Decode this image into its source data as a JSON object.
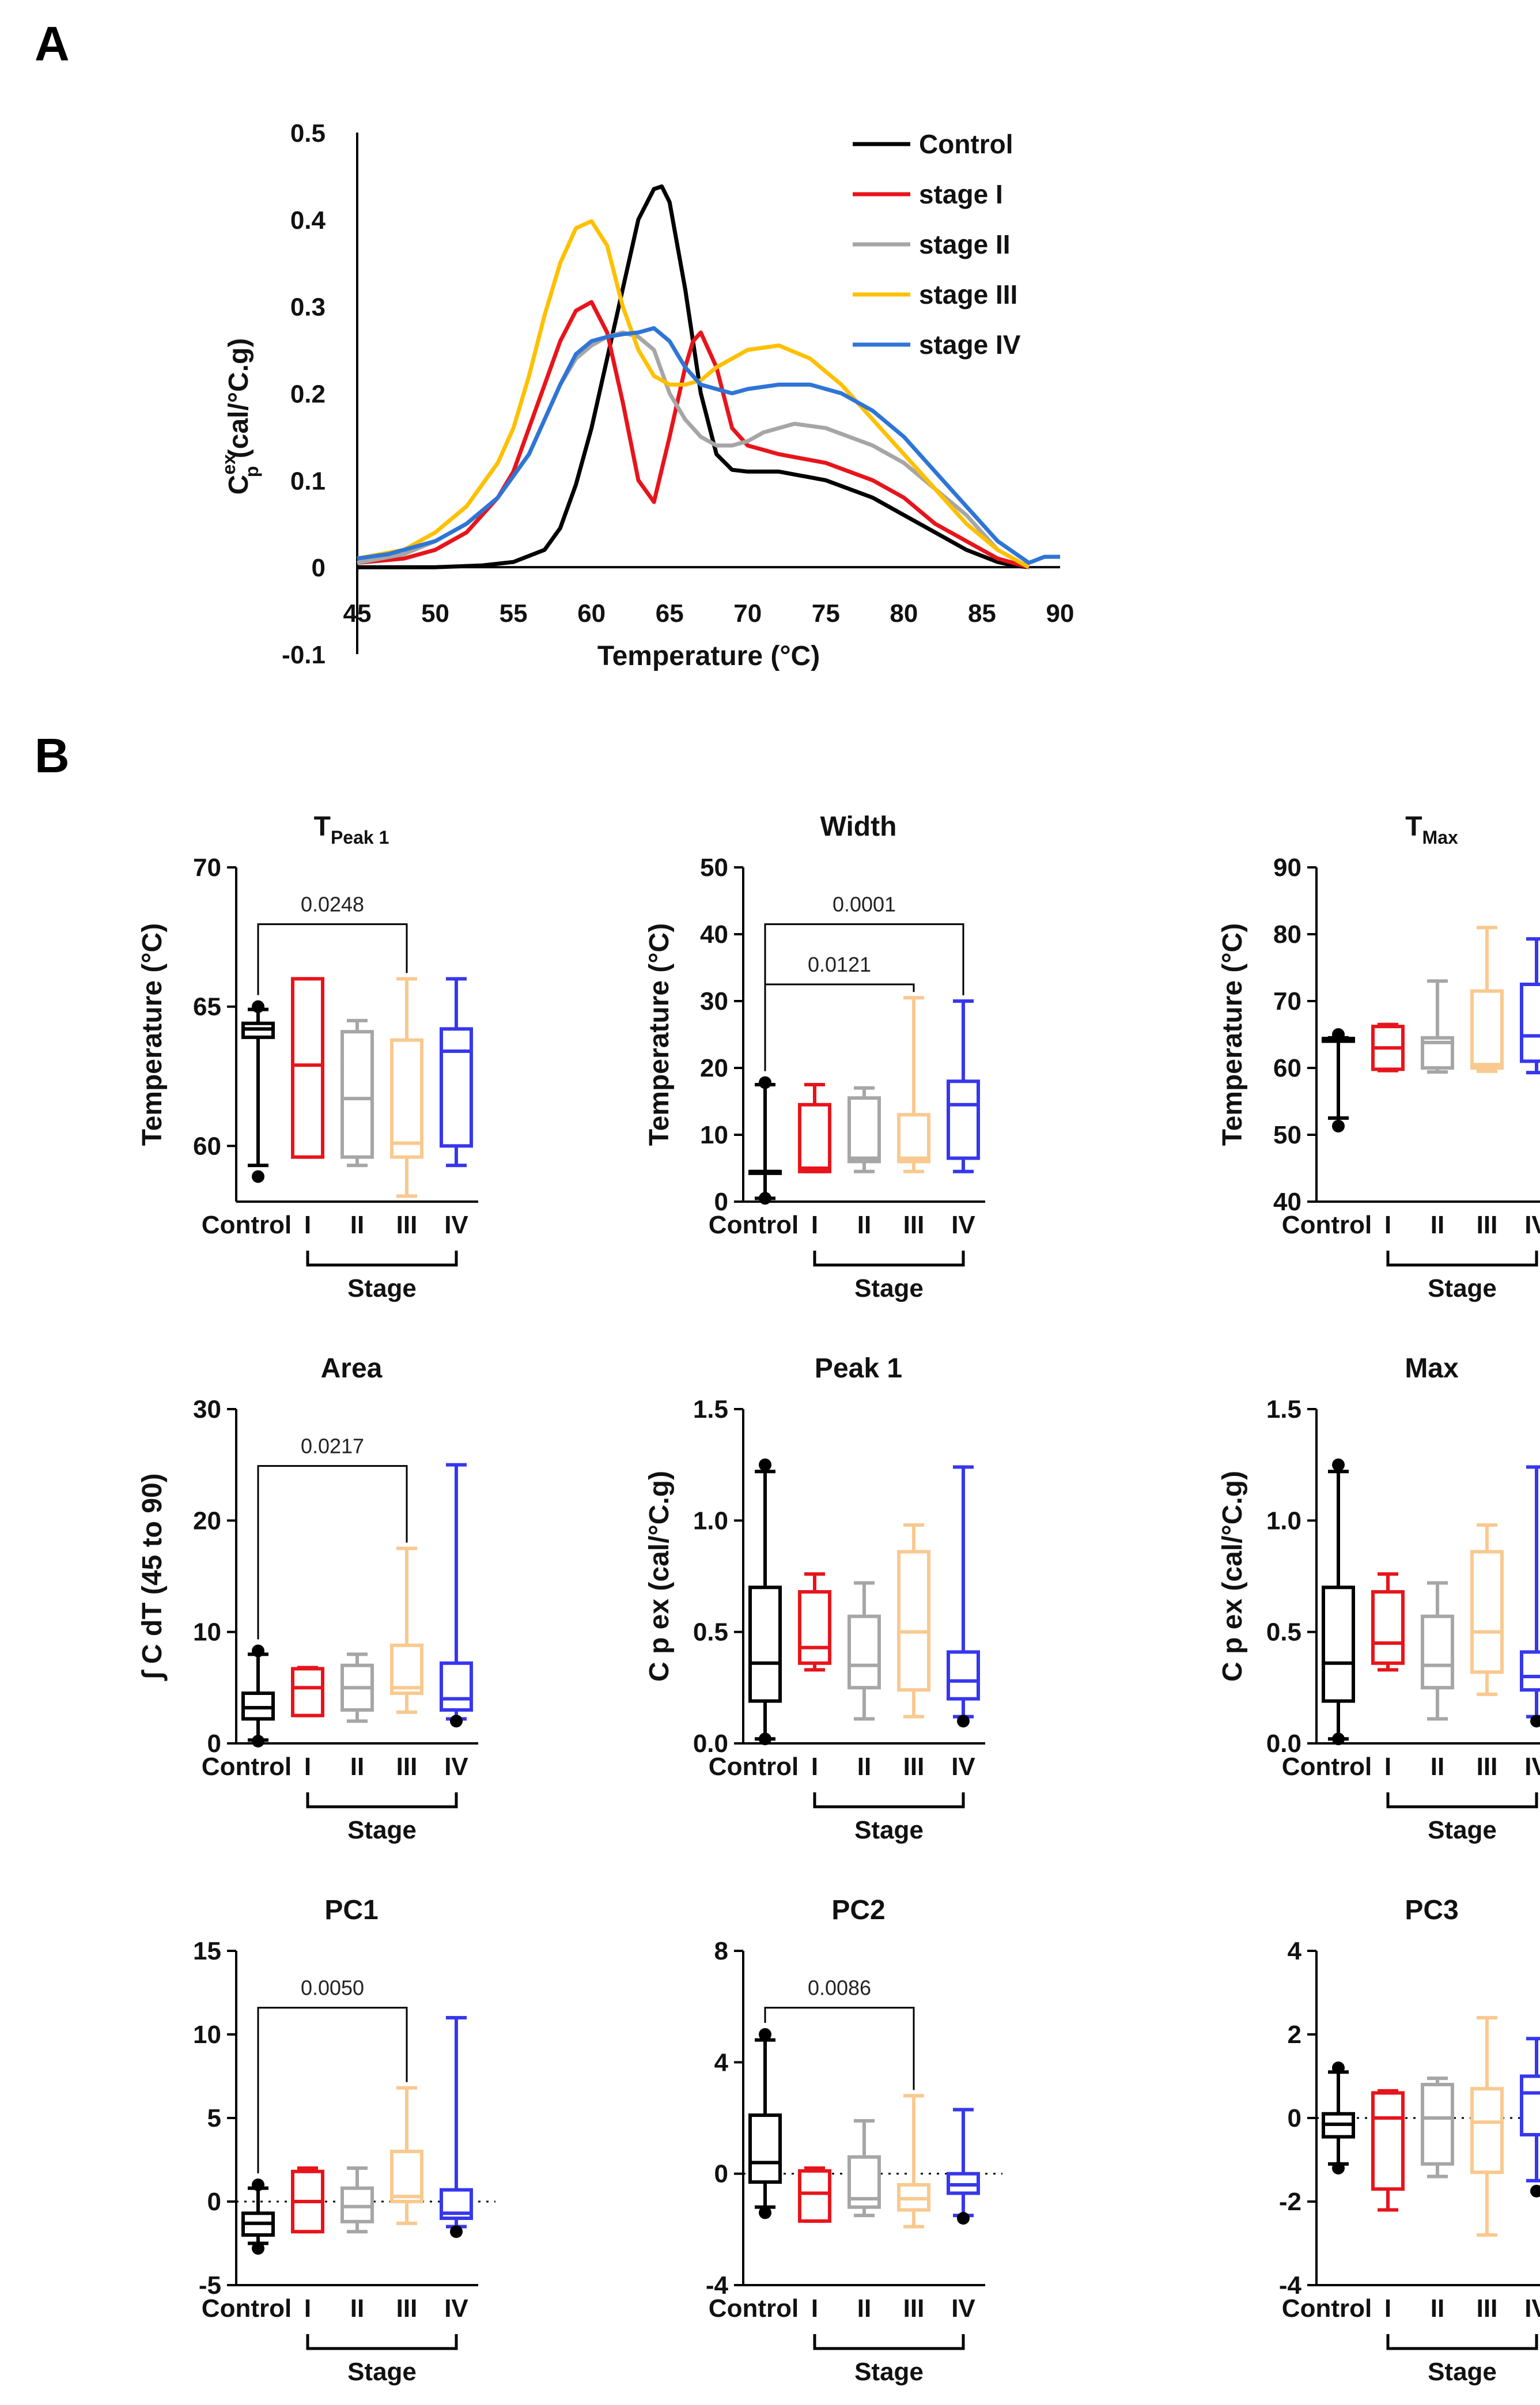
{
  "panels": {
    "a_letter": "A",
    "b_letter": "B"
  },
  "stage_label": "Stage",
  "chart_data": [
    {
      "id": "A",
      "type": "line",
      "title": "",
      "xlabel": "Temperature (°C)",
      "ylabel_main": "C",
      "ylabel_sup": "ex",
      "ylabel_sub": "p",
      "ylabel_rest": " (cal/°C.g)",
      "xlim": [
        45,
        90
      ],
      "ylim": [
        -0.1,
        0.5
      ],
      "xticks": [
        45,
        50,
        55,
        60,
        65,
        70,
        75,
        80,
        85,
        90
      ],
      "yticks": [
        -0.1,
        0,
        0.1,
        0.2,
        0.3,
        0.4,
        0.5
      ],
      "ytick_labels": [
        "-0.1",
        "0",
        "0.1",
        "0.2",
        "0.3",
        "0.4",
        "0.5"
      ],
      "legend": "top-right",
      "series": [
        {
          "name": "Control",
          "color": "#000000",
          "x": [
            45,
            50,
            53,
            55,
            57,
            58,
            59,
            60,
            61,
            62,
            63,
            64,
            64.5,
            65,
            66,
            67,
            68,
            69,
            70,
            72,
            75,
            78,
            80,
            82,
            84,
            86,
            87,
            88
          ],
          "y": [
            0,
            0,
            0.002,
            0.006,
            0.02,
            0.045,
            0.095,
            0.16,
            0.24,
            0.32,
            0.4,
            0.435,
            0.438,
            0.42,
            0.32,
            0.2,
            0.13,
            0.112,
            0.11,
            0.11,
            0.1,
            0.08,
            0.06,
            0.04,
            0.02,
            0.006,
            0.002,
            0
          ]
        },
        {
          "name": "stage I",
          "color": "#e8141b",
          "x": [
            45,
            48,
            50,
            52,
            54,
            55,
            56,
            57,
            58,
            59,
            60,
            61,
            62,
            63,
            64,
            65,
            66,
            66.5,
            67,
            68,
            69,
            70,
            72,
            75,
            78,
            80,
            82,
            84,
            86,
            88
          ],
          "y": [
            0.005,
            0.01,
            0.02,
            0.04,
            0.08,
            0.11,
            0.16,
            0.21,
            0.26,
            0.295,
            0.305,
            0.27,
            0.19,
            0.1,
            0.075,
            0.15,
            0.23,
            0.26,
            0.27,
            0.23,
            0.16,
            0.14,
            0.13,
            0.12,
            0.1,
            0.08,
            0.05,
            0.03,
            0.01,
            0
          ]
        },
        {
          "name": "stage II",
          "color": "#a6a6a6",
          "x": [
            45,
            48,
            50,
            52,
            54,
            56,
            57,
            58,
            59,
            60,
            61,
            62,
            63,
            64,
            65,
            66,
            67,
            68,
            69,
            70,
            71,
            72,
            73,
            75,
            78,
            80,
            82,
            84,
            86,
            88
          ],
          "y": [
            0.005,
            0.015,
            0.03,
            0.05,
            0.08,
            0.13,
            0.17,
            0.21,
            0.24,
            0.255,
            0.265,
            0.27,
            0.265,
            0.25,
            0.2,
            0.17,
            0.15,
            0.14,
            0.14,
            0.145,
            0.155,
            0.16,
            0.165,
            0.16,
            0.14,
            0.12,
            0.09,
            0.06,
            0.02,
            0
          ]
        },
        {
          "name": "stage III",
          "color": "#ffc000",
          "x": [
            45,
            48,
            50,
            52,
            54,
            55,
            56,
            57,
            58,
            59,
            60,
            61,
            62,
            63,
            64,
            65,
            66,
            67,
            68,
            70,
            72,
            74,
            76,
            78,
            80,
            82,
            84,
            86,
            88
          ],
          "y": [
            0.01,
            0.02,
            0.04,
            0.07,
            0.12,
            0.16,
            0.22,
            0.29,
            0.35,
            0.39,
            0.398,
            0.37,
            0.3,
            0.25,
            0.22,
            0.21,
            0.21,
            0.215,
            0.23,
            0.25,
            0.255,
            0.24,
            0.21,
            0.17,
            0.13,
            0.09,
            0.05,
            0.02,
            0
          ]
        },
        {
          "name": "stage IV",
          "color": "#2e75d6",
          "x": [
            45,
            47,
            48,
            50,
            52,
            54,
            56,
            57,
            58,
            59,
            60,
            61,
            62,
            63,
            64,
            65,
            66,
            67,
            68,
            69,
            70,
            72,
            74,
            76,
            78,
            80,
            82,
            84,
            86,
            88,
            89,
            90
          ],
          "y": [
            0.01,
            0.015,
            0.02,
            0.03,
            0.05,
            0.08,
            0.13,
            0.17,
            0.21,
            0.245,
            0.26,
            0.265,
            0.268,
            0.27,
            0.275,
            0.26,
            0.23,
            0.21,
            0.205,
            0.2,
            0.205,
            0.21,
            0.21,
            0.2,
            0.18,
            0.15,
            0.11,
            0.07,
            0.03,
            0.005,
            0.012,
            0.012
          ]
        }
      ]
    },
    {
      "id": "TPeak1",
      "type": "box",
      "title": "T",
      "title_sub": "Peak 1",
      "ylabel": "Temperature (°C)",
      "ylim": [
        58,
        70
      ],
      "yticks": [
        60,
        65,
        70
      ],
      "ytick_labels": [
        "60",
        "65",
        "70"
      ],
      "zero_line": false,
      "categories": [
        "Control",
        "I",
        "II",
        "III",
        "IV"
      ],
      "boxes": [
        {
          "min": 59.3,
          "q1": 63.9,
          "med": 64.2,
          "q3": 64.4,
          "max": 64.9,
          "outliers": [
            65,
            58.9
          ]
        },
        {
          "min": 59.6,
          "q1": 59.6,
          "med": 62.9,
          "q3": 66,
          "max": 66,
          "outliers": []
        },
        {
          "min": 59.3,
          "q1": 59.6,
          "med": 61.7,
          "q3": 64.1,
          "max": 64.5,
          "outliers": []
        },
        {
          "min": 58.2,
          "q1": 59.6,
          "med": 60.1,
          "q3": 63.8,
          "max": 66,
          "outliers": []
        },
        {
          "min": 59.3,
          "q1": 60,
          "med": 63.4,
          "q3": 64.2,
          "max": 66,
          "outliers": []
        }
      ],
      "brackets": [
        {
          "from": 0,
          "to": 3,
          "label": "0.0248"
        }
      ]
    },
    {
      "id": "Width",
      "type": "box",
      "title": "Width",
      "title_sub": "",
      "ylabel": "Temperature (°C)",
      "ylim": [
        0,
        50
      ],
      "yticks": [
        0,
        10,
        20,
        30,
        40,
        50
      ],
      "ytick_labels": [
        "0",
        "10",
        "20",
        "30",
        "40",
        "50"
      ],
      "zero_line": false,
      "categories": [
        "Control",
        "I",
        "II",
        "III",
        "IV"
      ],
      "boxes": [
        {
          "min": 0.5,
          "q1": 4.5,
          "med": 4.5,
          "q3": 4.5,
          "max": 17.5,
          "outliers": [
            17.8,
            0.5
          ]
        },
        {
          "min": 4.5,
          "q1": 4.5,
          "med": 5,
          "q3": 14.5,
          "max": 17.5,
          "outliers": []
        },
        {
          "min": 4.5,
          "q1": 6,
          "med": 6.5,
          "q3": 15.5,
          "max": 17,
          "outliers": []
        },
        {
          "min": 4.5,
          "q1": 6,
          "med": 6.5,
          "q3": 13,
          "max": 30.5,
          "outliers": []
        },
        {
          "min": 4.5,
          "q1": 6.5,
          "med": 14.5,
          "q3": 18,
          "max": 30,
          "outliers": []
        }
      ],
      "brackets": [
        {
          "from": 0,
          "to": 3,
          "label": "0.0121"
        },
        {
          "from": 0,
          "to": 4,
          "label": "0.0001"
        }
      ]
    },
    {
      "id": "TMax",
      "type": "box",
      "title": "T",
      "title_sub": "Max",
      "ylabel": "Temperature (°C)",
      "ylim": [
        40,
        90
      ],
      "yticks": [
        40,
        50,
        60,
        70,
        80,
        90
      ],
      "ytick_labels": [
        "40",
        "50",
        "60",
        "70",
        "80",
        "90"
      ],
      "zero_line": false,
      "categories": [
        "Control",
        "I",
        "II",
        "III",
        "IV"
      ],
      "boxes": [
        {
          "min": 52.5,
          "q1": 64,
          "med": 64.2,
          "q3": 64.4,
          "max": 64.5,
          "outliers": [
            65,
            51.3
          ]
        },
        {
          "min": 59.6,
          "q1": 59.8,
          "med": 63,
          "q3": 66.2,
          "max": 66.5,
          "outliers": []
        },
        {
          "min": 59.4,
          "q1": 60,
          "med": 63.8,
          "q3": 64.5,
          "max": 73,
          "outliers": []
        },
        {
          "min": 59.5,
          "q1": 60,
          "med": 60.5,
          "q3": 71.5,
          "max": 81,
          "outliers": []
        },
        {
          "min": 59.3,
          "q1": 61,
          "med": 64.8,
          "q3": 72.5,
          "max": 79.3,
          "outliers": []
        }
      ],
      "brackets": []
    },
    {
      "id": "Area",
      "type": "box",
      "title": "Area",
      "title_sub": "",
      "ylabel": "∫ C dT (45 to 90)",
      "ylim": [
        0,
        30
      ],
      "yticks": [
        0,
        10,
        20,
        30
      ],
      "ytick_labels": [
        "0",
        "10",
        "20",
        "30"
      ],
      "zero_line": false,
      "categories": [
        "Control",
        "I",
        "II",
        "III",
        "IV"
      ],
      "boxes": [
        {
          "min": 0.3,
          "q1": 2.2,
          "med": 3.2,
          "q3": 4.5,
          "max": 8,
          "outliers": [
            8.3,
            0.2
          ]
        },
        {
          "min": 2.5,
          "q1": 2.5,
          "med": 5,
          "q3": 6.7,
          "max": 6.8,
          "outliers": []
        },
        {
          "min": 2,
          "q1": 3,
          "med": 5,
          "q3": 7,
          "max": 8,
          "outliers": []
        },
        {
          "min": 2.8,
          "q1": 4.5,
          "med": 5,
          "q3": 8.8,
          "max": 17.5,
          "outliers": []
        },
        {
          "min": 2.2,
          "q1": 3,
          "med": 4,
          "q3": 7.2,
          "max": 25,
          "outliers": [
            2
          ]
        }
      ],
      "brackets": [
        {
          "from": 0,
          "to": 3,
          "label": "0.0217"
        }
      ]
    },
    {
      "id": "Peak1",
      "type": "box",
      "title": "Peak 1",
      "title_sub": "",
      "ylabel": "C p ex (cal/°C.g)",
      "ylim": [
        0,
        1.5
      ],
      "yticks": [
        0,
        0.5,
        1.0,
        1.5
      ],
      "ytick_labels": [
        "0.0",
        "0.5",
        "1.0",
        "1.5"
      ],
      "zero_line": false,
      "categories": [
        "Control",
        "I",
        "II",
        "III",
        "IV"
      ],
      "boxes": [
        {
          "min": 0.02,
          "q1": 0.19,
          "med": 0.36,
          "q3": 0.7,
          "max": 1.22,
          "outliers": [
            1.25,
            0.02
          ]
        },
        {
          "min": 0.33,
          "q1": 0.36,
          "med": 0.43,
          "q3": 0.68,
          "max": 0.76,
          "outliers": []
        },
        {
          "min": 0.11,
          "q1": 0.25,
          "med": 0.35,
          "q3": 0.57,
          "max": 0.72,
          "outliers": []
        },
        {
          "min": 0.12,
          "q1": 0.24,
          "med": 0.5,
          "q3": 0.86,
          "max": 0.98,
          "outliers": []
        },
        {
          "min": 0.12,
          "q1": 0.2,
          "med": 0.28,
          "q3": 0.41,
          "max": 1.24,
          "outliers": [
            0.1
          ]
        }
      ],
      "brackets": []
    },
    {
      "id": "Max",
      "type": "box",
      "title": "Max",
      "title_sub": "",
      "ylabel": "C p ex (cal/°C.g)",
      "ylim": [
        0,
        1.5
      ],
      "yticks": [
        0,
        0.5,
        1.0,
        1.5
      ],
      "ytick_labels": [
        "0.0",
        "0.5",
        "1.0",
        "1.5"
      ],
      "zero_line": false,
      "categories": [
        "Control",
        "I",
        "II",
        "III",
        "IV"
      ],
      "boxes": [
        {
          "min": 0.02,
          "q1": 0.19,
          "med": 0.36,
          "q3": 0.7,
          "max": 1.22,
          "outliers": [
            1.25,
            0.02
          ]
        },
        {
          "min": 0.33,
          "q1": 0.36,
          "med": 0.45,
          "q3": 0.68,
          "max": 0.76,
          "outliers": []
        },
        {
          "min": 0.11,
          "q1": 0.25,
          "med": 0.35,
          "q3": 0.57,
          "max": 0.72,
          "outliers": []
        },
        {
          "min": 0.22,
          "q1": 0.32,
          "med": 0.5,
          "q3": 0.86,
          "max": 0.98,
          "outliers": []
        },
        {
          "min": 0.12,
          "q1": 0.24,
          "med": 0.3,
          "q3": 0.41,
          "max": 1.24,
          "outliers": [
            0.1
          ]
        }
      ],
      "brackets": []
    },
    {
      "id": "PC1",
      "type": "box",
      "title": "PC1",
      "title_sub": "",
      "ylabel": "",
      "ylim": [
        -5,
        15
      ],
      "yticks": [
        -5,
        0,
        5,
        10,
        15
      ],
      "ytick_labels": [
        "-5",
        "0",
        "5",
        "10",
        "15"
      ],
      "zero_line": true,
      "categories": [
        "Control",
        "I",
        "II",
        "III",
        "IV"
      ],
      "boxes": [
        {
          "min": -2.5,
          "q1": -2,
          "med": -1.3,
          "q3": -0.7,
          "max": 0.8,
          "outliers": [
            1,
            -2.8
          ]
        },
        {
          "min": -1.8,
          "q1": -1.8,
          "med": 0,
          "q3": 1.8,
          "max": 2,
          "outliers": []
        },
        {
          "min": -1.8,
          "q1": -1.2,
          "med": -0.3,
          "q3": 0.8,
          "max": 2,
          "outliers": []
        },
        {
          "min": -1.3,
          "q1": 0,
          "med": 0.3,
          "q3": 3,
          "max": 6.8,
          "outliers": []
        },
        {
          "min": -1.5,
          "q1": -1,
          "med": -0.7,
          "q3": 0.7,
          "max": 11,
          "outliers": [
            -1.8
          ]
        }
      ],
      "brackets": [
        {
          "from": 0,
          "to": 3,
          "label": "0.0050"
        }
      ]
    },
    {
      "id": "PC2",
      "type": "box",
      "title": "PC2",
      "title_sub": "",
      "ylabel": "",
      "ylim": [
        -4,
        8
      ],
      "yticks": [
        -4,
        0,
        4,
        8
      ],
      "ytick_labels": [
        "-4",
        "0",
        "4",
        "8"
      ],
      "zero_line": true,
      "categories": [
        "Control",
        "I",
        "II",
        "III",
        "IV"
      ],
      "boxes": [
        {
          "min": -1.2,
          "q1": -0.3,
          "med": 0.4,
          "q3": 2.1,
          "max": 4.8,
          "outliers": [
            5,
            -1.4
          ]
        },
        {
          "min": -1.7,
          "q1": -1.7,
          "med": -0.7,
          "q3": 0.1,
          "max": 0.2,
          "outliers": []
        },
        {
          "min": -1.5,
          "q1": -1.2,
          "med": -0.9,
          "q3": 0.6,
          "max": 1.9,
          "outliers": []
        },
        {
          "min": -1.9,
          "q1": -1.3,
          "med": -0.9,
          "q3": -0.4,
          "max": 2.8,
          "outliers": []
        },
        {
          "min": -1.5,
          "q1": -0.7,
          "med": -0.4,
          "q3": 0,
          "max": 2.3,
          "outliers": [
            -1.6
          ]
        }
      ],
      "brackets": [
        {
          "from": 0,
          "to": 3,
          "label": "0.0086"
        }
      ]
    },
    {
      "id": "PC3",
      "type": "box",
      "title": "PC3",
      "title_sub": "",
      "ylabel": "",
      "ylim": [
        -4,
        4
      ],
      "yticks": [
        -4,
        -2,
        0,
        2,
        4
      ],
      "ytick_labels": [
        "-4",
        "-2",
        "0",
        "2",
        "4"
      ],
      "zero_line": true,
      "categories": [
        "Control",
        "I",
        "II",
        "III",
        "IV"
      ],
      "boxes": [
        {
          "min": -1.1,
          "q1": -0.45,
          "med": -0.15,
          "q3": 0.1,
          "max": 1.1,
          "outliers": [
            1.2,
            -1.2
          ]
        },
        {
          "min": -2.2,
          "q1": -1.7,
          "med": 0,
          "q3": 0.6,
          "max": 0.65,
          "outliers": []
        },
        {
          "min": -1.4,
          "q1": -1.1,
          "med": 0,
          "q3": 0.8,
          "max": 0.95,
          "outliers": []
        },
        {
          "min": -2.8,
          "q1": -1.3,
          "med": -0.1,
          "q3": 0.7,
          "max": 2.4,
          "outliers": []
        },
        {
          "min": -1.5,
          "q1": -0.4,
          "med": 0.6,
          "q3": 1,
          "max": 1.9,
          "outliers": [
            -1.75
          ]
        }
      ],
      "brackets": []
    }
  ],
  "colors": {
    "box_colors": [
      "#000000",
      "#e8141b",
      "#a6a6a6",
      "#f9c98f",
      "#3737ee"
    ]
  }
}
